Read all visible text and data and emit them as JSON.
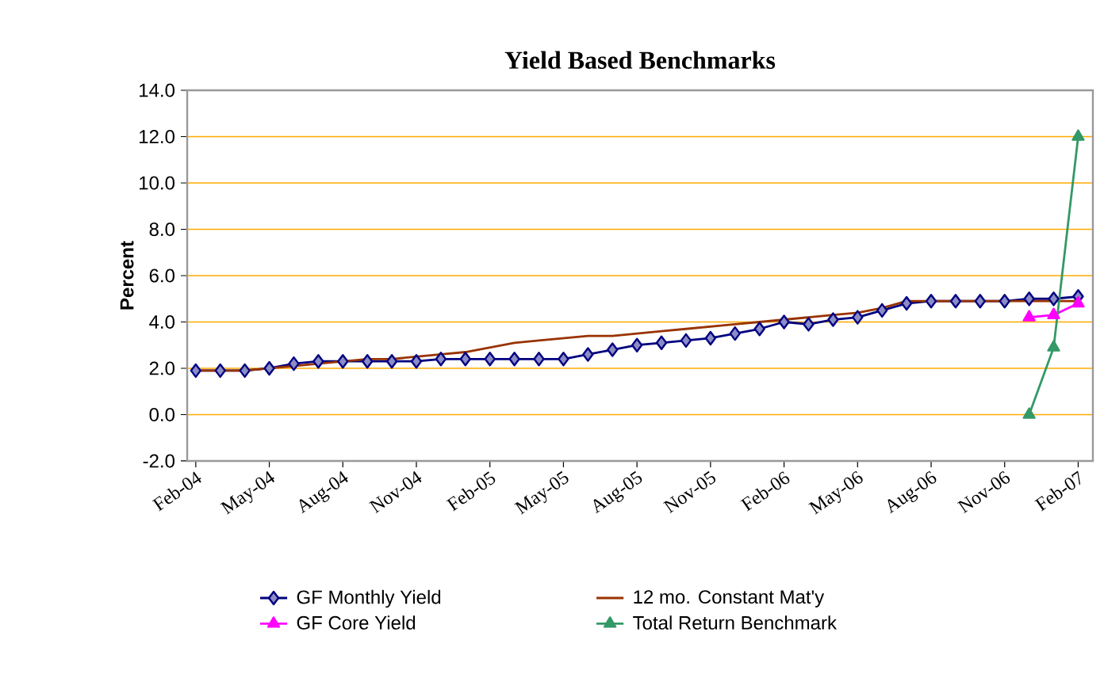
{
  "chart_data": {
    "type": "line",
    "title": "Yield Based Benchmarks",
    "ylabel": "Percent",
    "categories": [
      "Feb-04",
      null,
      null,
      "May-04",
      null,
      null,
      "Aug-04",
      null,
      null,
      "Nov-04",
      null,
      null,
      "Feb-05",
      null,
      null,
      "May-05",
      null,
      null,
      "Aug-05",
      null,
      null,
      "Nov-05",
      null,
      null,
      "Feb-06",
      null,
      null,
      "May-06",
      null,
      null,
      "Aug-06",
      null,
      null,
      "Nov-06",
      null,
      null,
      "Feb-07"
    ],
    "series": [
      {
        "name": "GF Monthly Yield",
        "color": "#000080",
        "marker": "diamond",
        "values": [
          1.9,
          1.9,
          1.9,
          2.0,
          2.2,
          2.3,
          2.3,
          2.3,
          2.3,
          2.3,
          2.4,
          2.4,
          2.4,
          2.4,
          2.4,
          2.4,
          2.6,
          2.8,
          3.0,
          3.1,
          3.2,
          3.3,
          3.5,
          3.7,
          4.0,
          3.9,
          4.1,
          4.2,
          4.5,
          4.8,
          4.9,
          4.9,
          4.9,
          4.9,
          5.0,
          5.0,
          5.1
        ]
      },
      {
        "name": "12 mo. Constant Mat'y",
        "color": "#993300",
        "marker": "none",
        "values": [
          1.9,
          1.9,
          1.9,
          2.0,
          2.1,
          2.2,
          2.3,
          2.4,
          2.4,
          2.5,
          2.6,
          2.7,
          2.9,
          3.1,
          3.2,
          3.3,
          3.4,
          3.4,
          3.5,
          3.6,
          3.7,
          3.8,
          3.9,
          4.0,
          4.1,
          4.2,
          4.3,
          4.4,
          4.6,
          4.9,
          4.9,
          4.9,
          4.9,
          4.9,
          4.9,
          4.9,
          4.9
        ]
      },
      {
        "name": "GF Core Yield",
        "color": "#ff00ff",
        "marker": "triangle",
        "values": [
          null,
          null,
          null,
          null,
          null,
          null,
          null,
          null,
          null,
          null,
          null,
          null,
          null,
          null,
          null,
          null,
          null,
          null,
          null,
          null,
          null,
          null,
          null,
          null,
          null,
          null,
          null,
          null,
          null,
          null,
          null,
          null,
          null,
          null,
          4.2,
          4.3,
          4.8
        ]
      },
      {
        "name": "Total Return Benchmark",
        "color": "#339966",
        "marker": "triangle",
        "values": [
          null,
          null,
          null,
          null,
          null,
          null,
          null,
          null,
          null,
          null,
          null,
          null,
          null,
          null,
          null,
          null,
          null,
          null,
          null,
          null,
          null,
          null,
          null,
          null,
          null,
          null,
          null,
          null,
          null,
          null,
          null,
          null,
          null,
          null,
          0.0,
          2.9,
          12.0
        ]
      }
    ],
    "ylim": [
      -2,
      14
    ],
    "yticks": [
      {
        "value": -2,
        "label": "-2.0"
      },
      {
        "value": 0,
        "label": "0.0"
      },
      {
        "value": 2,
        "label": "2.0"
      },
      {
        "value": 4,
        "label": "4.0"
      },
      {
        "value": 6,
        "label": "6.0"
      },
      {
        "value": 8,
        "label": "8.0"
      },
      {
        "value": 10,
        "label": "10.0"
      },
      {
        "value": 12,
        "label": "12.0"
      },
      {
        "value": 14,
        "label": "14.0"
      }
    ],
    "grid": "y",
    "legend": "bottom",
    "line_style": "solid"
  }
}
